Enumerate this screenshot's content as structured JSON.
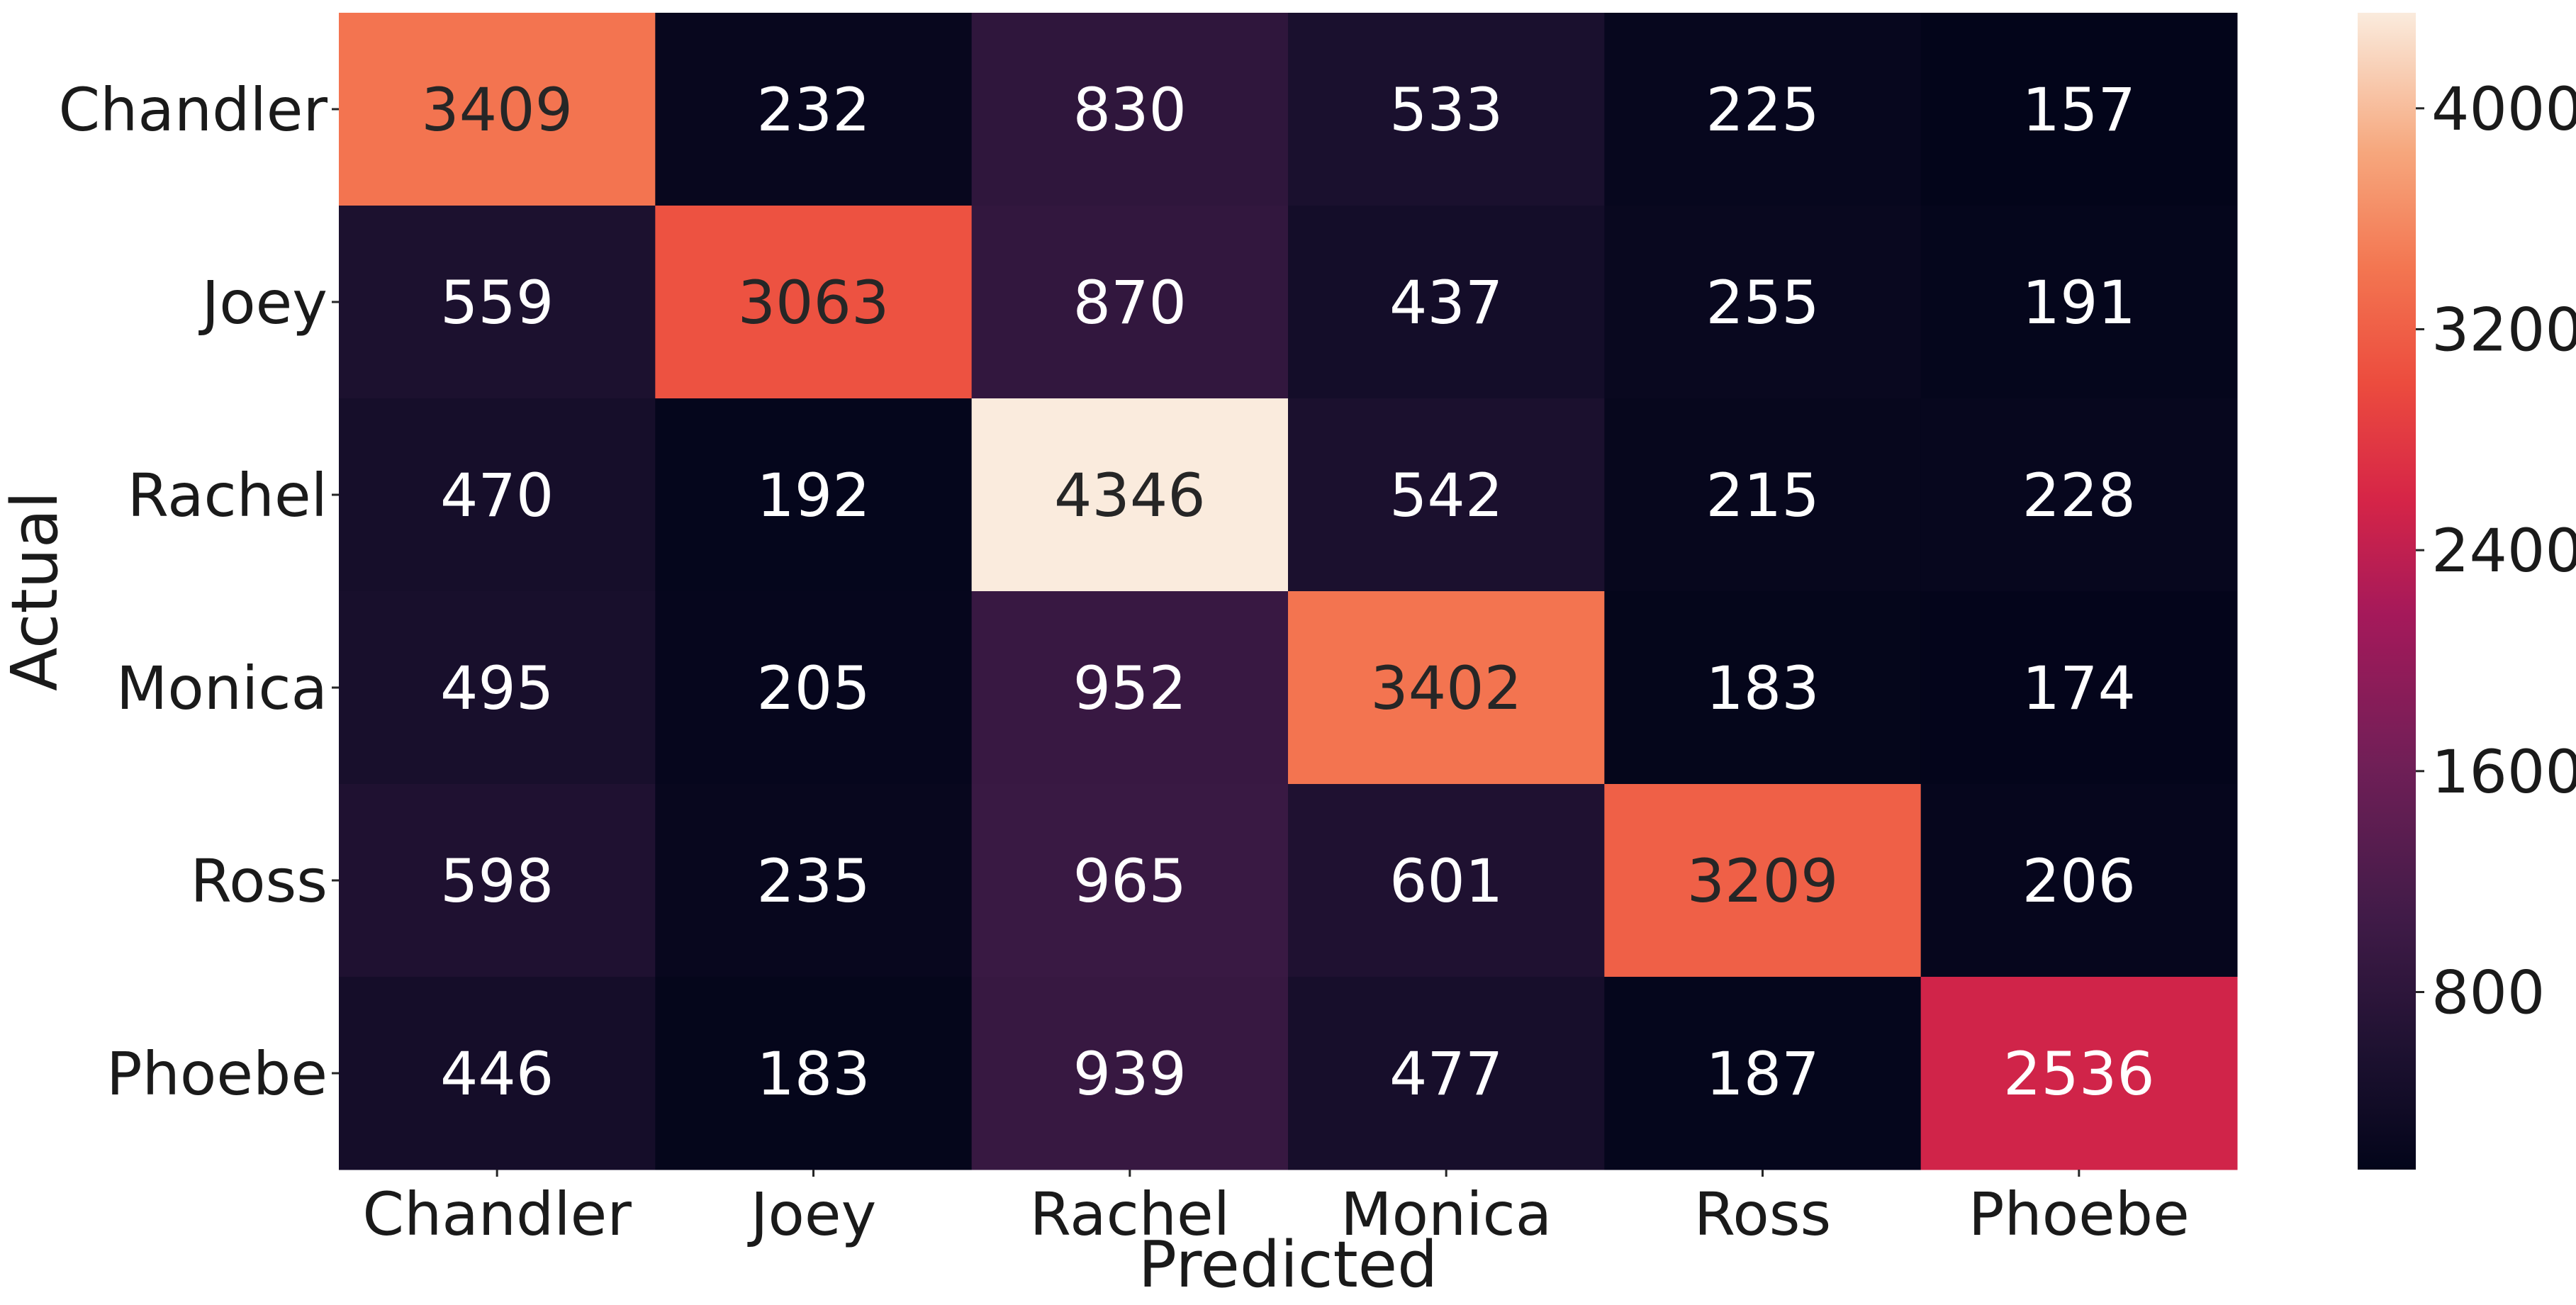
{
  "chart_data": {
    "type": "heatmap",
    "xlabel": "Predicted",
    "ylabel": "Actual",
    "x_categories": [
      "Chandler",
      "Joey",
      "Rachel",
      "Monica",
      "Ross",
      "Phoebe"
    ],
    "y_categories": [
      "Chandler",
      "Joey",
      "Rachel",
      "Monica",
      "Ross",
      "Phoebe"
    ],
    "values": [
      [
        3409,
        232,
        830,
        533,
        225,
        157
      ],
      [
        559,
        3063,
        870,
        437,
        255,
        191
      ],
      [
        470,
        192,
        4346,
        542,
        215,
        228
      ],
      [
        495,
        205,
        952,
        3402,
        183,
        174
      ],
      [
        598,
        235,
        965,
        601,
        3209,
        206
      ],
      [
        446,
        183,
        939,
        477,
        187,
        2536
      ]
    ],
    "colorbar": {
      "colormap": "rocket",
      "vmin": 157,
      "vmax": 4346,
      "ticks": [
        800,
        1600,
        2400,
        3200,
        4000
      ]
    },
    "grid": false
  }
}
